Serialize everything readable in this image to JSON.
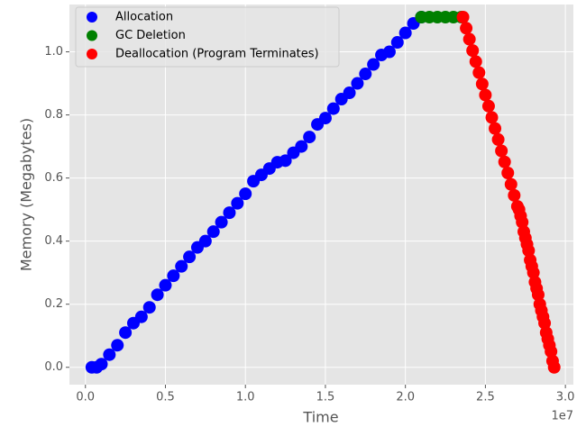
{
  "chart_data": {
    "type": "scatter",
    "xlabel": "Time",
    "ylabel": "Memory (Megabytes)",
    "x_offset_label": "1e7",
    "xlim": [
      -0.1,
      3.05
    ],
    "ylim": [
      -0.055,
      1.15
    ],
    "xticks": [
      {
        "value": 0,
        "label": "0.0"
      },
      0.5,
      {
        "value": 1,
        "label": "1.0"
      },
      1.5,
      {
        "value": 2,
        "label": "2.0"
      },
      2.5,
      {
        "value": 3,
        "label": "3.0"
      }
    ],
    "yticks": [
      {
        "value": 0,
        "label": "0.0"
      },
      0.2,
      0.4,
      0.6,
      0.8,
      {
        "value": 1,
        "label": "1.0"
      }
    ],
    "grid": true,
    "legend": "upper left",
    "series": [
      {
        "name": "Allocation",
        "color": "#0000ff",
        "x": [
          0.04,
          0.07,
          0.1,
          0.15,
          0.2,
          0.25,
          0.3,
          0.35,
          0.4,
          0.45,
          0.5,
          0.55,
          0.6,
          0.65,
          0.7,
          0.75,
          0.8,
          0.85,
          0.9,
          0.95,
          1.0,
          1.05,
          1.1,
          1.15,
          1.2,
          1.25,
          1.3,
          1.35,
          1.4,
          1.45,
          1.5,
          1.55,
          1.6,
          1.65,
          1.7,
          1.75,
          1.8,
          1.85,
          1.9,
          1.95,
          2.0,
          2.05,
          2.1
        ],
        "y": [
          0,
          0,
          0.01,
          0.04,
          0.07,
          0.11,
          0.14,
          0.16,
          0.19,
          0.23,
          0.26,
          0.29,
          0.32,
          0.35,
          0.38,
          0.4,
          0.43,
          0.46,
          0.49,
          0.52,
          0.55,
          0.59,
          0.61,
          0.63,
          0.65,
          0.655,
          0.68,
          0.7,
          0.73,
          0.77,
          0.79,
          0.82,
          0.85,
          0.87,
          0.9,
          0.93,
          0.96,
          0.99,
          1.0,
          1.03,
          1.06,
          1.09,
          1.11
        ]
      },
      {
        "name": "GC Deletion",
        "color": "#008000",
        "x": [
          2.1,
          2.15,
          2.2,
          2.25,
          2.3,
          2.35
        ],
        "y": [
          1.11,
          1.11,
          1.11,
          1.11,
          1.11,
          1.11
        ]
      },
      {
        "name": "Deallocation (Program Terminates)",
        "color": "#ff0000",
        "x": [
          2.36,
          2.38,
          2.4,
          2.42,
          2.44,
          2.46,
          2.48,
          2.5,
          2.52,
          2.54,
          2.56,
          2.58,
          2.6,
          2.62,
          2.64,
          2.66,
          2.68,
          2.7,
          2.71,
          2.72,
          2.73,
          2.74,
          2.75,
          2.76,
          2.77,
          2.78,
          2.79,
          2.8,
          2.81,
          2.82,
          2.83,
          2.84,
          2.85,
          2.86,
          2.87,
          2.88,
          2.89,
          2.9,
          2.91,
          2.92,
          2.93
        ],
        "y": [
          1.11,
          1.075,
          1.04,
          1.004,
          0.969,
          0.934,
          0.898,
          0.863,
          0.828,
          0.792,
          0.757,
          0.722,
          0.686,
          0.651,
          0.616,
          0.58,
          0.545,
          0.51,
          0.5,
          0.48,
          0.46,
          0.43,
          0.41,
          0.39,
          0.37,
          0.34,
          0.32,
          0.3,
          0.27,
          0.25,
          0.23,
          0.2,
          0.18,
          0.16,
          0.14,
          0.11,
          0.09,
          0.07,
          0.05,
          0.02,
          0
        ]
      }
    ]
  }
}
